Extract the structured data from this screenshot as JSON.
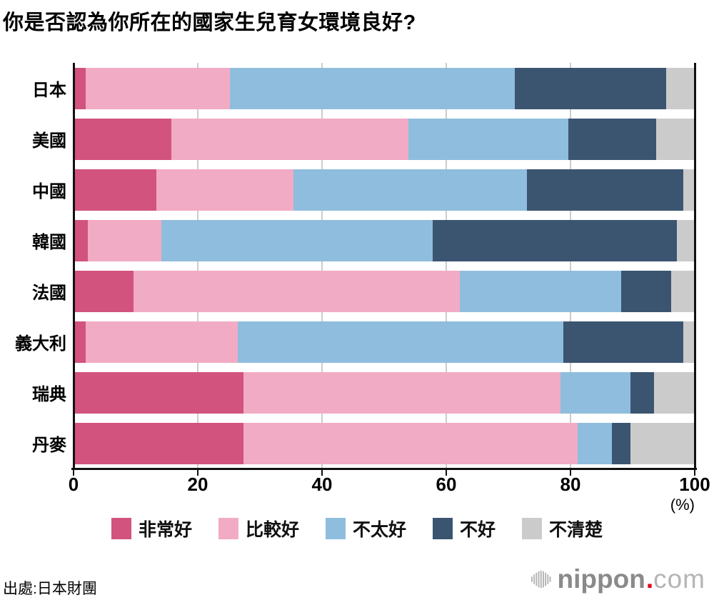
{
  "title": "你是否認為你所在的國家生兒育女環境良好?",
  "chart_data": {
    "type": "bar",
    "orientation": "horizontal-stacked",
    "title": "你是否認為你所在的國家生兒育女環境良好?",
    "xlabel": "(%)",
    "xlim": [
      0,
      100
    ],
    "x_ticks": [
      0,
      20,
      40,
      60,
      80,
      100
    ],
    "grid": true,
    "legend_position": "bottom",
    "categories": [
      "日本",
      "美國",
      "中國",
      "韓國",
      "法國",
      "義大利",
      "瑞典",
      "丹麥"
    ],
    "series": [
      {
        "name": "非常好",
        "color": "#d2537e",
        "values": [
          2.0,
          15.8,
          13.3,
          2.3,
          9.6,
          2.0,
          27.3,
          27.3
        ]
      },
      {
        "name": "比較好",
        "color": "#f2abc4",
        "values": [
          23.2,
          38.1,
          22.1,
          11.8,
          52.6,
          24.4,
          51.1,
          53.8
        ]
      },
      {
        "name": "不太好",
        "color": "#8fbddd",
        "values": [
          45.8,
          25.8,
          37.6,
          43.7,
          26.0,
          52.4,
          11.3,
          5.6
        ]
      },
      {
        "name": "不好",
        "color": "#3b5571",
        "values": [
          24.4,
          14.1,
          25.2,
          39.3,
          8.0,
          19.4,
          3.8,
          3.0
        ]
      },
      {
        "name": "不清楚",
        "color": "#cbcbcb",
        "values": [
          4.6,
          6.2,
          1.8,
          2.9,
          3.8,
          1.8,
          6.5,
          10.3
        ]
      }
    ]
  },
  "footer": {
    "source": "出處:日本財團",
    "logo": {
      "icon": "audio-wave-icon",
      "brand": "nippon",
      "dot": ".",
      "tld": "com"
    }
  }
}
